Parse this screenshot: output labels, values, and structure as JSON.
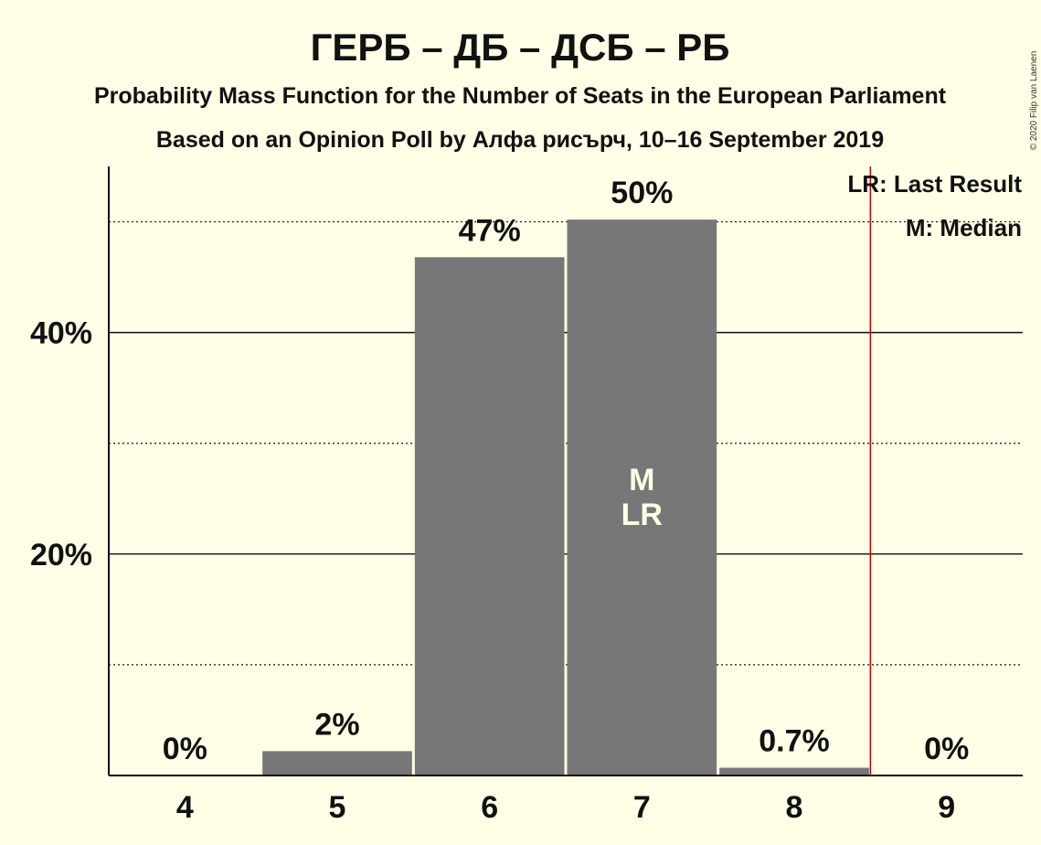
{
  "chart_data": {
    "type": "bar",
    "title": "ГЕРБ – ДБ – ДСБ – РБ",
    "subtitle_lines": [
      "Probability Mass Function for the Number of Seats in the European Parliament",
      "Based on an Opinion Poll by Алфа рисърч, 10–16 September 2019"
    ],
    "categories": [
      "4",
      "5",
      "6",
      "7",
      "8",
      "9"
    ],
    "values": [
      0,
      2.2,
      46.8,
      50.2,
      0.7,
      0
    ],
    "data_labels": [
      "0%",
      "2%",
      "47%",
      "50%",
      "0.7%",
      "0%"
    ],
    "ylim": [
      0,
      55
    ],
    "y_major_ticks": [
      {
        "value": 20,
        "label": "20%"
      },
      {
        "value": 40,
        "label": "40%"
      }
    ],
    "y_minor_gridlines": [
      10,
      30,
      50
    ],
    "median_category": "7",
    "last_result_category": "7",
    "in_bar_markers": [
      "M",
      "LR"
    ],
    "threshold_line_after_category": "8",
    "legend_placement": "top-right",
    "legend": [
      "LR: Last Result",
      "M: Median"
    ],
    "colors": {
      "bar": "#777777",
      "background": "#FFFEE6",
      "threshold_line": "#CC0000",
      "text": "#111111"
    }
  },
  "copyright": "© 2020 Filip van Laenen"
}
